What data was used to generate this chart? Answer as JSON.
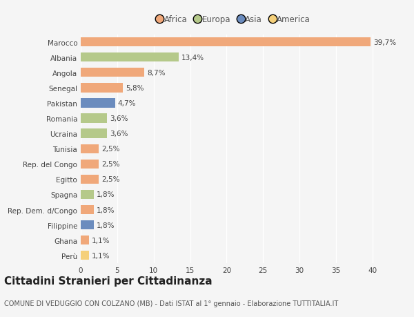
{
  "categories": [
    "Marocco",
    "Albania",
    "Angola",
    "Senegal",
    "Pakistan",
    "Romania",
    "Ucraina",
    "Tunisia",
    "Rep. del Congo",
    "Egitto",
    "Spagna",
    "Rep. Dem. d/Congo",
    "Filippine",
    "Ghana",
    "Perù"
  ],
  "values": [
    39.7,
    13.4,
    8.7,
    5.8,
    4.7,
    3.6,
    3.6,
    2.5,
    2.5,
    2.5,
    1.8,
    1.8,
    1.8,
    1.1,
    1.1
  ],
  "labels": [
    "39,7%",
    "13,4%",
    "8,7%",
    "5,8%",
    "4,7%",
    "3,6%",
    "3,6%",
    "2,5%",
    "2,5%",
    "2,5%",
    "1,8%",
    "1,8%",
    "1,8%",
    "1,1%",
    "1,1%"
  ],
  "continents": [
    "Africa",
    "Europa",
    "Africa",
    "Africa",
    "Asia",
    "Europa",
    "Europa",
    "Africa",
    "Africa",
    "Africa",
    "Europa",
    "Africa",
    "Asia",
    "Africa",
    "America"
  ],
  "continent_colors": {
    "Africa": "#F0A87A",
    "Europa": "#B5C98A",
    "Asia": "#6B8CBE",
    "America": "#F5D07A"
  },
  "legend_order": [
    "Africa",
    "Europa",
    "Asia",
    "America"
  ],
  "title": "Cittadini Stranieri per Cittadinanza",
  "subtitle": "COMUNE DI VEDUGGIO CON COLZANO (MB) - Dati ISTAT al 1° gennaio - Elaborazione TUTTITALIA.IT",
  "xlim": [
    0,
    42
  ],
  "xticks": [
    0,
    5,
    10,
    15,
    20,
    25,
    30,
    35,
    40
  ],
  "background_color": "#f5f5f5",
  "bar_height": 0.6,
  "label_fontsize": 7.5,
  "ytick_fontsize": 7.5,
  "xtick_fontsize": 7.5,
  "title_fontsize": 11,
  "subtitle_fontsize": 7
}
